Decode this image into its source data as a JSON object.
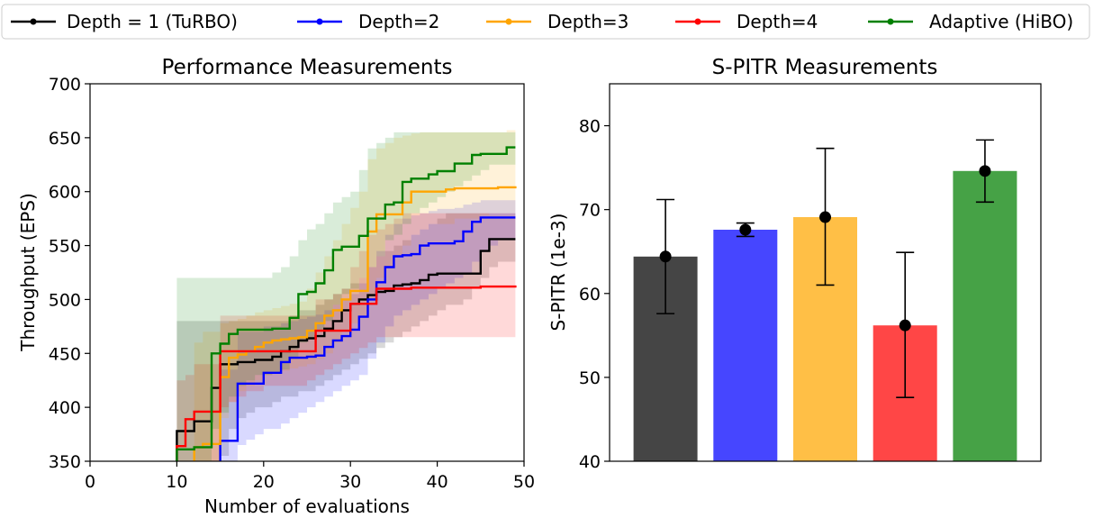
{
  "legend": {
    "items": [
      {
        "label": "Depth = 1 (TuRBO)",
        "color": "#000000"
      },
      {
        "label": "Depth=2",
        "color": "#0000ff"
      },
      {
        "label": "Depth=3",
        "color": "#ffa500"
      },
      {
        "label": "Depth=4",
        "color": "#ff0000"
      },
      {
        "label": "Adaptive (HiBO)",
        "color": "#008000"
      }
    ]
  },
  "chart_data": [
    {
      "type": "line",
      "title": "Performance Measurements",
      "xlabel": "Number of evaluations",
      "ylabel": "Throughput (EPS)",
      "xlim": [
        0,
        50
      ],
      "ylim": [
        350,
        700
      ],
      "xticks": [
        "0",
        "10",
        "20",
        "30",
        "40",
        "50"
      ],
      "yticks": [
        "350",
        "400",
        "450",
        "500",
        "550",
        "600",
        "650",
        "700"
      ],
      "grid": false,
      "step": true,
      "series": [
        {
          "name": "Depth = 1 (TuRBO)",
          "color": "#000000",
          "x": [
            10,
            11,
            12,
            13,
            14,
            15,
            16,
            17,
            18,
            19,
            20,
            21,
            22,
            23,
            24,
            25,
            26,
            27,
            28,
            29,
            30,
            31,
            32,
            33,
            34,
            35,
            36,
            37,
            38,
            39,
            40,
            41,
            42,
            43,
            44,
            45,
            46,
            47,
            48,
            49
          ],
          "y": [
            378,
            378,
            387,
            387,
            418,
            440,
            440,
            442,
            442,
            444,
            444,
            447,
            452,
            456,
            462,
            464,
            466,
            473,
            480,
            490,
            496,
            500,
            504,
            507,
            508,
            513,
            514,
            515,
            518,
            523,
            524,
            524,
            524,
            524,
            524,
            545,
            556,
            556,
            556,
            556
          ],
          "band_upper": [
            480,
            480,
            480,
            480,
            480,
            480,
            480,
            480,
            480,
            480,
            480,
            480,
            480,
            485,
            490,
            490,
            495,
            500,
            505,
            510,
            515,
            520,
            530,
            540,
            545,
            550,
            555,
            560,
            565,
            570,
            575,
            580,
            580,
            580,
            580,
            580,
            580,
            580,
            580,
            580
          ],
          "band_lower": [
            320,
            320,
            320,
            320,
            320,
            355,
            380,
            390,
            395,
            400,
            400,
            405,
            410,
            410,
            415,
            415,
            420,
            425,
            430,
            435,
            440,
            445,
            450,
            455,
            460,
            465,
            470,
            475,
            480,
            485,
            490,
            495,
            495,
            500,
            510,
            520,
            530,
            535,
            535,
            535
          ]
        },
        {
          "name": "Depth=2",
          "color": "#0000ff",
          "x": [
            15,
            16,
            17,
            18,
            19,
            20,
            21,
            22,
            23,
            24,
            25,
            26,
            27,
            28,
            29,
            30,
            31,
            32,
            33,
            34,
            35,
            36,
            37,
            38,
            39,
            40,
            41,
            42,
            43,
            44,
            45,
            46,
            47,
            48,
            49
          ],
          "y": [
            369,
            369,
            422,
            422,
            422,
            432,
            432,
            442,
            446,
            446,
            447,
            448,
            456,
            462,
            466,
            472,
            484,
            500,
            516,
            530,
            540,
            541,
            542,
            550,
            552,
            552,
            552,
            554,
            563,
            572,
            576,
            576,
            576,
            576,
            576
          ],
          "band_upper": [
            435,
            435,
            470,
            470,
            470,
            475,
            475,
            478,
            480,
            482,
            484,
            486,
            490,
            495,
            500,
            505,
            515,
            530,
            545,
            560,
            570,
            575,
            578,
            580,
            582,
            584,
            584,
            585,
            588,
            590,
            592,
            592,
            592,
            592,
            592
          ],
          "band_lower": [
            320,
            320,
            365,
            370,
            375,
            380,
            380,
            385,
            390,
            395,
            400,
            405,
            410,
            415,
            420,
            425,
            430,
            445,
            460,
            475,
            485,
            490,
            495,
            500,
            505,
            510,
            515,
            520,
            525,
            535,
            545,
            550,
            555,
            555,
            555
          ]
        },
        {
          "name": "Depth=3",
          "color": "#ffa500",
          "x": [
            12,
            13,
            14,
            15,
            16,
            17,
            18,
            19,
            20,
            21,
            22,
            23,
            24,
            25,
            26,
            27,
            28,
            29,
            30,
            31,
            32,
            33,
            34,
            35,
            36,
            37,
            38,
            39,
            40,
            41,
            42,
            43,
            44,
            45,
            46,
            47,
            48,
            49
          ],
          "y": [
            363,
            366,
            366,
            428,
            446,
            449,
            452,
            456,
            460,
            462,
            463,
            464,
            465,
            471,
            478,
            485,
            490,
            500,
            508,
            508,
            563,
            579,
            579,
            579,
            590,
            600,
            600,
            600,
            600,
            602,
            603,
            603,
            603,
            603,
            603,
            604,
            604,
            605
          ],
          "band_upper": [
            460,
            470,
            470,
            478,
            480,
            482,
            485,
            488,
            490,
            492,
            494,
            496,
            498,
            510,
            525,
            540,
            555,
            570,
            585,
            600,
            630,
            640,
            645,
            650,
            652,
            654,
            655,
            655,
            655,
            655,
            655,
            655,
            655,
            655,
            655,
            655,
            657,
            657
          ],
          "band_lower": [
            330,
            330,
            330,
            390,
            405,
            415,
            420,
            425,
            430,
            432,
            434,
            436,
            438,
            440,
            445,
            450,
            460,
            470,
            478,
            485,
            500,
            520,
            530,
            540,
            550,
            560,
            565,
            570,
            570,
            570,
            575,
            575,
            575,
            578,
            580,
            580,
            580,
            580
          ]
        },
        {
          "name": "Depth=4",
          "color": "#ff0000",
          "x": [
            10,
            11,
            12,
            13,
            14,
            15,
            16,
            17,
            18,
            19,
            20,
            21,
            22,
            23,
            24,
            25,
            26,
            27,
            28,
            29,
            30,
            31,
            32,
            33,
            34,
            35,
            36,
            37,
            38,
            39,
            40,
            41,
            42,
            43,
            44,
            45,
            46,
            47,
            48,
            49
          ],
          "y": [
            364,
            389,
            396,
            396,
            396,
            452,
            452,
            452,
            452,
            452,
            452,
            452,
            452,
            452,
            452,
            452,
            471,
            471,
            471,
            471,
            496,
            496,
            496,
            510,
            510,
            510,
            510,
            511,
            511,
            511,
            511,
            511,
            511,
            511,
            511,
            512,
            512,
            512,
            512,
            513
          ],
          "band_upper": [
            425,
            430,
            440,
            440,
            440,
            485,
            485,
            485,
            485,
            485,
            485,
            485,
            485,
            485,
            485,
            485,
            500,
            500,
            505,
            510,
            530,
            545,
            560,
            565,
            570,
            575,
            580,
            580,
            580,
            580,
            580,
            580,
            580,
            580,
            580,
            580,
            580,
            580,
            580,
            580
          ],
          "band_lower": [
            310,
            330,
            345,
            345,
            345,
            400,
            405,
            410,
            415,
            415,
            420,
            420,
            420,
            420,
            420,
            425,
            430,
            435,
            440,
            445,
            450,
            455,
            460,
            465,
            465,
            465,
            465,
            465,
            465,
            465,
            465,
            465,
            465,
            465,
            465,
            465,
            465,
            465,
            465,
            465
          ]
        },
        {
          "name": "Adaptive (HiBO)",
          "color": "#008000",
          "x": [
            10,
            11,
            12,
            13,
            14,
            15,
            16,
            17,
            18,
            19,
            20,
            21,
            22,
            23,
            24,
            25,
            26,
            27,
            28,
            29,
            30,
            31,
            32,
            33,
            34,
            35,
            36,
            37,
            38,
            39,
            40,
            41,
            42,
            43,
            44,
            45,
            46,
            47,
            48,
            49
          ],
          "y": [
            361,
            361,
            363,
            363,
            450,
            459,
            468,
            472,
            472,
            472,
            472,
            473,
            473,
            483,
            505,
            507,
            515,
            527,
            546,
            549,
            549,
            559,
            575,
            575,
            588,
            590,
            609,
            612,
            612,
            616,
            619,
            619,
            626,
            626,
            634,
            635,
            635,
            635,
            641,
            641
          ],
          "band_upper": [
            520,
            520,
            520,
            520,
            520,
            520,
            520,
            520,
            520,
            520,
            520,
            525,
            530,
            540,
            555,
            565,
            570,
            580,
            590,
            595,
            600,
            620,
            640,
            645,
            650,
            655,
            655,
            655,
            655,
            655,
            655,
            655,
            655,
            655,
            655,
            655,
            655,
            655,
            655,
            655
          ],
          "band_lower": [
            330,
            330,
            335,
            335,
            380,
            395,
            410,
            420,
            425,
            430,
            430,
            432,
            435,
            445,
            460,
            465,
            470,
            480,
            495,
            505,
            510,
            520,
            530,
            540,
            555,
            560,
            570,
            580,
            585,
            590,
            595,
            600,
            605,
            610,
            615,
            620,
            625,
            625,
            625,
            625
          ]
        }
      ]
    },
    {
      "type": "bar",
      "title": "S-PITR Measurements",
      "xlabel": "",
      "ylabel": "S-PITR (1e-3)",
      "ylim": [
        40,
        85
      ],
      "yticks": [
        "40",
        "50",
        "60",
        "70",
        "80"
      ],
      "grid": false,
      "categories": [
        "Depth = 1 (TuRBO)",
        "Depth=2",
        "Depth=3",
        "Depth=4",
        "Adaptive (HiBO)"
      ],
      "colors": [
        "#454545",
        "#4646ff",
        "#ffbf46",
        "#ff4646",
        "#46a246"
      ],
      "values": [
        64.4,
        67.6,
        69.1,
        56.2,
        74.6
      ],
      "error_low": [
        57.6,
        66.8,
        61.0,
        47.6,
        70.9
      ],
      "error_high": [
        71.2,
        68.4,
        77.3,
        64.9,
        78.3
      ]
    }
  ]
}
